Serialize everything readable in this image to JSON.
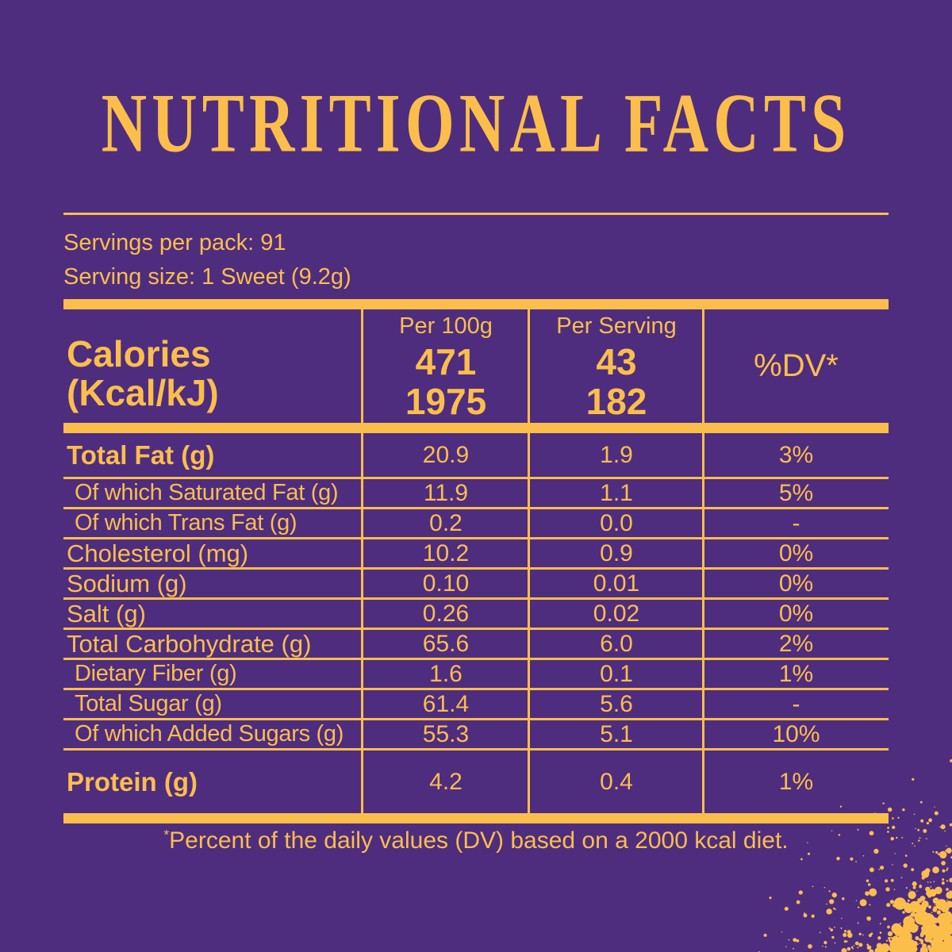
{
  "header": {
    "title": "NUTRITIONAL FACTS"
  },
  "serving_info": {
    "servings_label": "Servings per pack:",
    "servings_value": "91",
    "size_label": "Serving size:",
    "size_value": "1 Sweet (9.2g)"
  },
  "colors": {
    "background_purple": "#4E2D7F",
    "accent_gold": "#FBBE4B"
  },
  "table": {
    "column_headers": {
      "per_100g": "Per 100g",
      "per_serving": "Per Serving",
      "dv": "%DV*"
    },
    "calories": {
      "label_line1": "Calories",
      "label_line2": "(Kcal/kJ)",
      "per_100g_kcal": "471",
      "per_100g_kj": "1975",
      "per_serving_kcal": "43",
      "per_serving_kj": "182"
    },
    "rows": [
      {
        "label": "Total Fat (g)",
        "per_100g": "20.9",
        "per_serving": "1.9",
        "dv": "3%"
      },
      {
        "label": "Of which Saturated Fat (g)",
        "per_100g": "11.9",
        "per_serving": "1.1",
        "dv": "5%"
      },
      {
        "label": "Of which Trans Fat (g)",
        "per_100g": "0.2",
        "per_serving": "0.0",
        "dv": "-"
      },
      {
        "label": "Cholesterol (mg)",
        "per_100g": "10.2",
        "per_serving": "0.9",
        "dv": "0%"
      },
      {
        "label": "Sodium (g)",
        "per_100g": "0.10",
        "per_serving": "0.01",
        "dv": "0%"
      },
      {
        "label": "Salt (g)",
        "per_100g": "0.26",
        "per_serving": "0.02",
        "dv": "0%"
      },
      {
        "label": "Total Carbohydrate (g)",
        "per_100g": "65.6",
        "per_serving": "6.0",
        "dv": "2%"
      },
      {
        "label": "Dietary Fiber (g)",
        "per_100g": "1.6",
        "per_serving": "0.1",
        "dv": "1%"
      },
      {
        "label": "Total Sugar (g)",
        "per_100g": "61.4",
        "per_serving": "5.6",
        "dv": "-"
      },
      {
        "label": "Of which Added Sugars (g)",
        "per_100g": "55.3",
        "per_serving": "5.1",
        "dv": "10%"
      },
      {
        "label": "Protein (g)",
        "per_100g": "4.2",
        "per_serving": "0.4",
        "dv": "1%"
      }
    ]
  },
  "footnote": {
    "asterisk": "*",
    "text": "Percent of the daily values (DV) based on a 2000 kcal diet."
  }
}
